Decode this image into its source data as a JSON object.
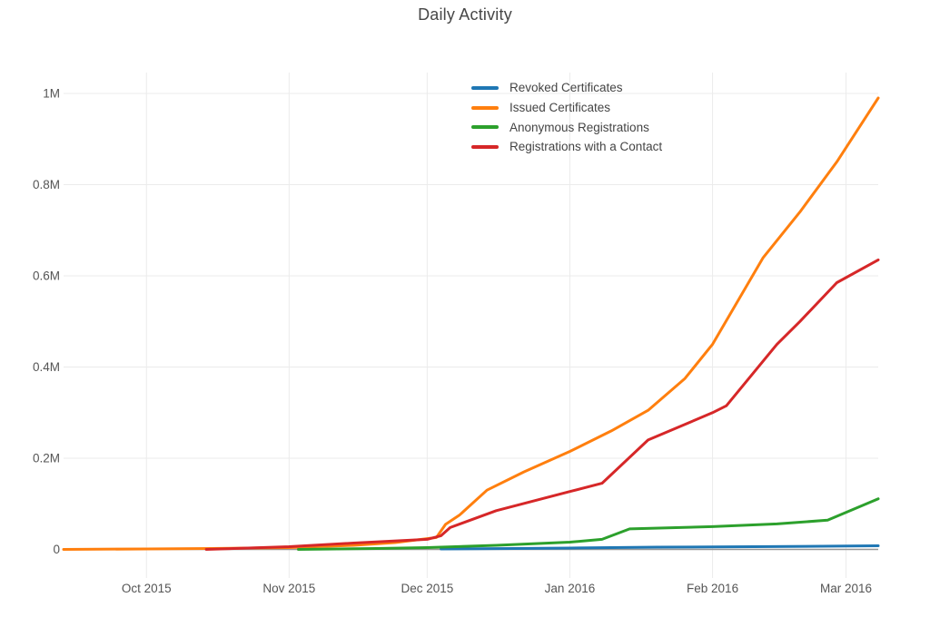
{
  "page": {
    "background": "#ffffff"
  },
  "chart_data": {
    "type": "line",
    "title": "Daily Activity",
    "value_unit": "millions",
    "grid": true,
    "legend": {
      "visible": true,
      "position": "inside-top-center"
    },
    "x_axis": {
      "type": "date",
      "range": [
        "2015-09-13",
        "2016-03-08"
      ],
      "ticks": [
        {
          "date": "2015-10-01",
          "label": "Oct 2015"
        },
        {
          "date": "2015-11-01",
          "label": "Nov 2015"
        },
        {
          "date": "2015-12-01",
          "label": "Dec 2015"
        },
        {
          "date": "2016-01-01",
          "label": "Jan 2016"
        },
        {
          "date": "2016-02-01",
          "label": "Feb 2016"
        },
        {
          "date": "2016-03-01",
          "label": "Mar 2016"
        }
      ]
    },
    "y_axis": {
      "ticks": [
        {
          "value": 0,
          "label": "0"
        },
        {
          "value": 0.2,
          "label": "0.2M"
        },
        {
          "value": 0.4,
          "label": "0.4M"
        },
        {
          "value": 0.6,
          "label": "0.6M"
        },
        {
          "value": 0.8,
          "label": "0.8M"
        },
        {
          "value": 1,
          "label": "1M"
        }
      ]
    },
    "series": [
      {
        "name": "Revoked Certificates",
        "color": "#1f77b4",
        "points": [
          [
            "2015-12-04",
            0.001
          ],
          [
            "2015-12-20",
            0.002
          ],
          [
            "2016-01-01",
            0.003
          ],
          [
            "2016-01-20",
            0.005
          ],
          [
            "2016-02-10",
            0.006
          ],
          [
            "2016-03-08",
            0.008
          ]
        ]
      },
      {
        "name": "Issued Certificates",
        "color": "#ff7f0e",
        "points": [
          [
            "2015-09-13",
            0.0
          ],
          [
            "2015-10-01",
            0.001
          ],
          [
            "2015-10-15",
            0.002
          ],
          [
            "2015-11-01",
            0.004
          ],
          [
            "2015-11-15",
            0.009
          ],
          [
            "2015-11-24",
            0.015
          ],
          [
            "2015-12-03",
            0.026
          ],
          [
            "2015-12-05",
            0.055
          ],
          [
            "2015-12-08",
            0.075
          ],
          [
            "2015-12-14",
            0.13
          ],
          [
            "2015-12-22",
            0.17
          ],
          [
            "2016-01-01",
            0.215
          ],
          [
            "2016-01-10",
            0.26
          ],
          [
            "2016-01-18",
            0.305
          ],
          [
            "2016-01-26",
            0.375
          ],
          [
            "2016-02-01",
            0.45
          ],
          [
            "2016-02-12",
            0.64
          ],
          [
            "2016-02-20",
            0.74
          ],
          [
            "2016-02-28",
            0.85
          ],
          [
            "2016-03-08",
            0.99
          ]
        ]
      },
      {
        "name": "Anonymous Registrations",
        "color": "#2ca02c",
        "points": [
          [
            "2015-11-03",
            0.0
          ],
          [
            "2015-11-20",
            0.002
          ],
          [
            "2015-12-01",
            0.004
          ],
          [
            "2015-12-16",
            0.009
          ],
          [
            "2016-01-01",
            0.016
          ],
          [
            "2016-01-08",
            0.022
          ],
          [
            "2016-01-14",
            0.045
          ],
          [
            "2016-02-01",
            0.05
          ],
          [
            "2016-02-15",
            0.056
          ],
          [
            "2016-02-26",
            0.064
          ],
          [
            "2016-03-08",
            0.111
          ]
        ]
      },
      {
        "name": "Registrations with a Contact",
        "color": "#d62728",
        "points": [
          [
            "2015-10-14",
            0.0
          ],
          [
            "2015-11-01",
            0.006
          ],
          [
            "2015-11-15",
            0.014
          ],
          [
            "2015-12-01",
            0.022
          ],
          [
            "2015-12-04",
            0.03
          ],
          [
            "2015-12-06",
            0.048
          ],
          [
            "2015-12-16",
            0.085
          ],
          [
            "2016-01-01",
            0.127
          ],
          [
            "2016-01-08",
            0.145
          ],
          [
            "2016-01-18",
            0.24
          ],
          [
            "2016-02-01",
            0.3
          ],
          [
            "2016-02-04",
            0.315
          ],
          [
            "2016-02-15",
            0.45
          ],
          [
            "2016-02-20",
            0.5
          ],
          [
            "2016-02-28",
            0.585
          ],
          [
            "2016-03-08",
            0.635
          ]
        ]
      }
    ]
  }
}
